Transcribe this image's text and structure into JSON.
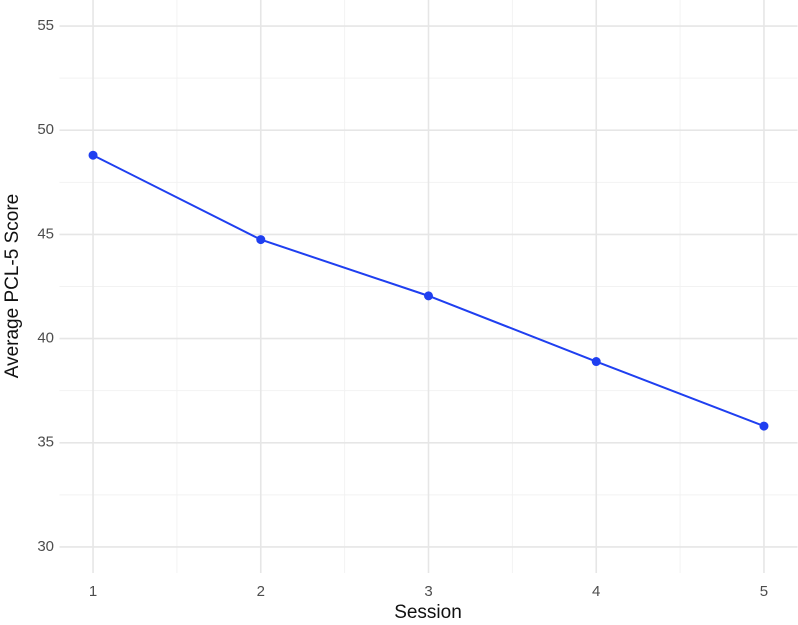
{
  "chart_data": {
    "type": "line",
    "x_label": "Session",
    "y_label": "Average PCL-5 Score",
    "x": [
      1,
      2,
      3,
      4,
      5
    ],
    "series": [
      {
        "name": "Average PCL-5 Score",
        "color": "#1f3ff0",
        "values": [
          48.8,
          44.75,
          42.05,
          38.9,
          35.8
        ]
      }
    ],
    "xlim": [
      0.8,
      5.2
    ],
    "xticks": [
      1,
      2,
      3,
      4,
      5
    ],
    "ylim": [
      28.75,
      56.25
    ],
    "yticks": [
      30,
      35,
      40,
      45,
      50,
      55
    ],
    "grid": true,
    "minor_grid": true
  }
}
